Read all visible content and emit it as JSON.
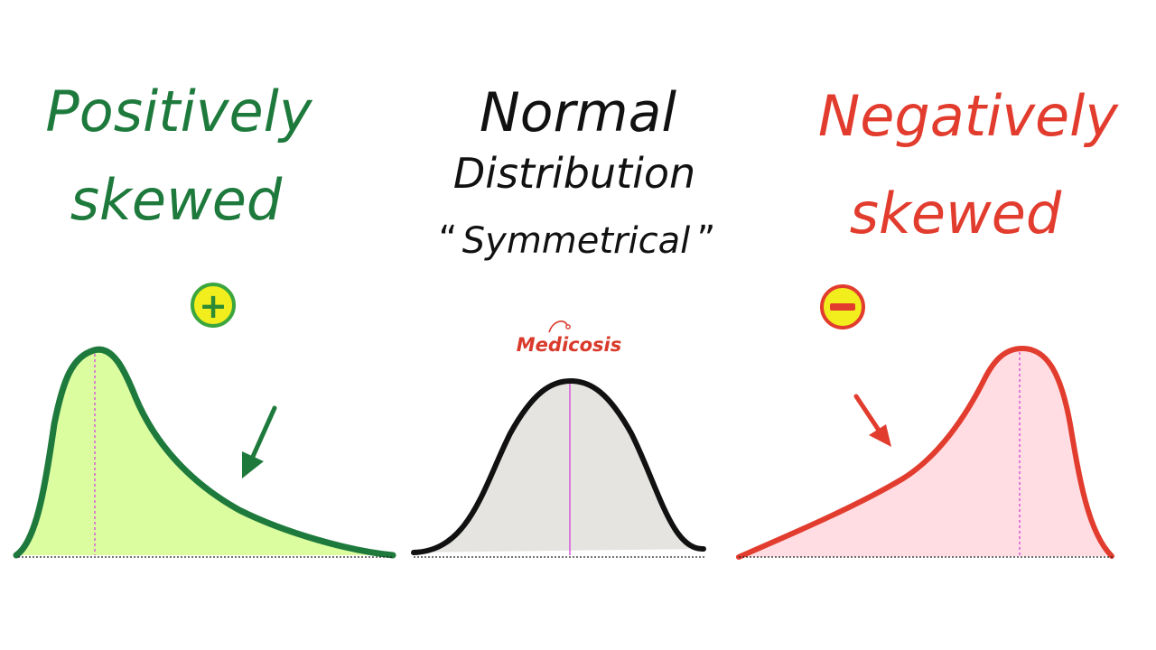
{
  "panels": {
    "positive": {
      "title_line1": "Positively",
      "title_line2": "skewed",
      "sign": "+",
      "color": "#1e7a3c",
      "fill": "#dcfca0"
    },
    "normal": {
      "title_line1": "Normal",
      "title_line2": "Distribution",
      "subtitle_open": "“",
      "subtitle": "Symmetrical",
      "subtitle_close": "”",
      "color": "#111111",
      "fill": "#e6e4e1"
    },
    "negative": {
      "title_line1": "Negatively",
      "title_line2": "skewed",
      "sign": "−",
      "color": "#e23c2e",
      "fill": "#ffdde3"
    }
  },
  "watermark": {
    "text": "Medicosis",
    "color": "#d93a2b"
  },
  "badge": {
    "fill": "#f2ee1e",
    "positive_border": "#3ba53e",
    "negative_border": "#e23c2e"
  },
  "median_line_color": "#d65ad9",
  "icons": {
    "positive_sign": "plus-circle-icon",
    "negative_sign": "minus-circle-icon",
    "positive_arrow": "arrow-down-left-icon",
    "negative_arrow": "arrow-down-right-icon",
    "watermark_mark": "stethoscope-icon"
  }
}
